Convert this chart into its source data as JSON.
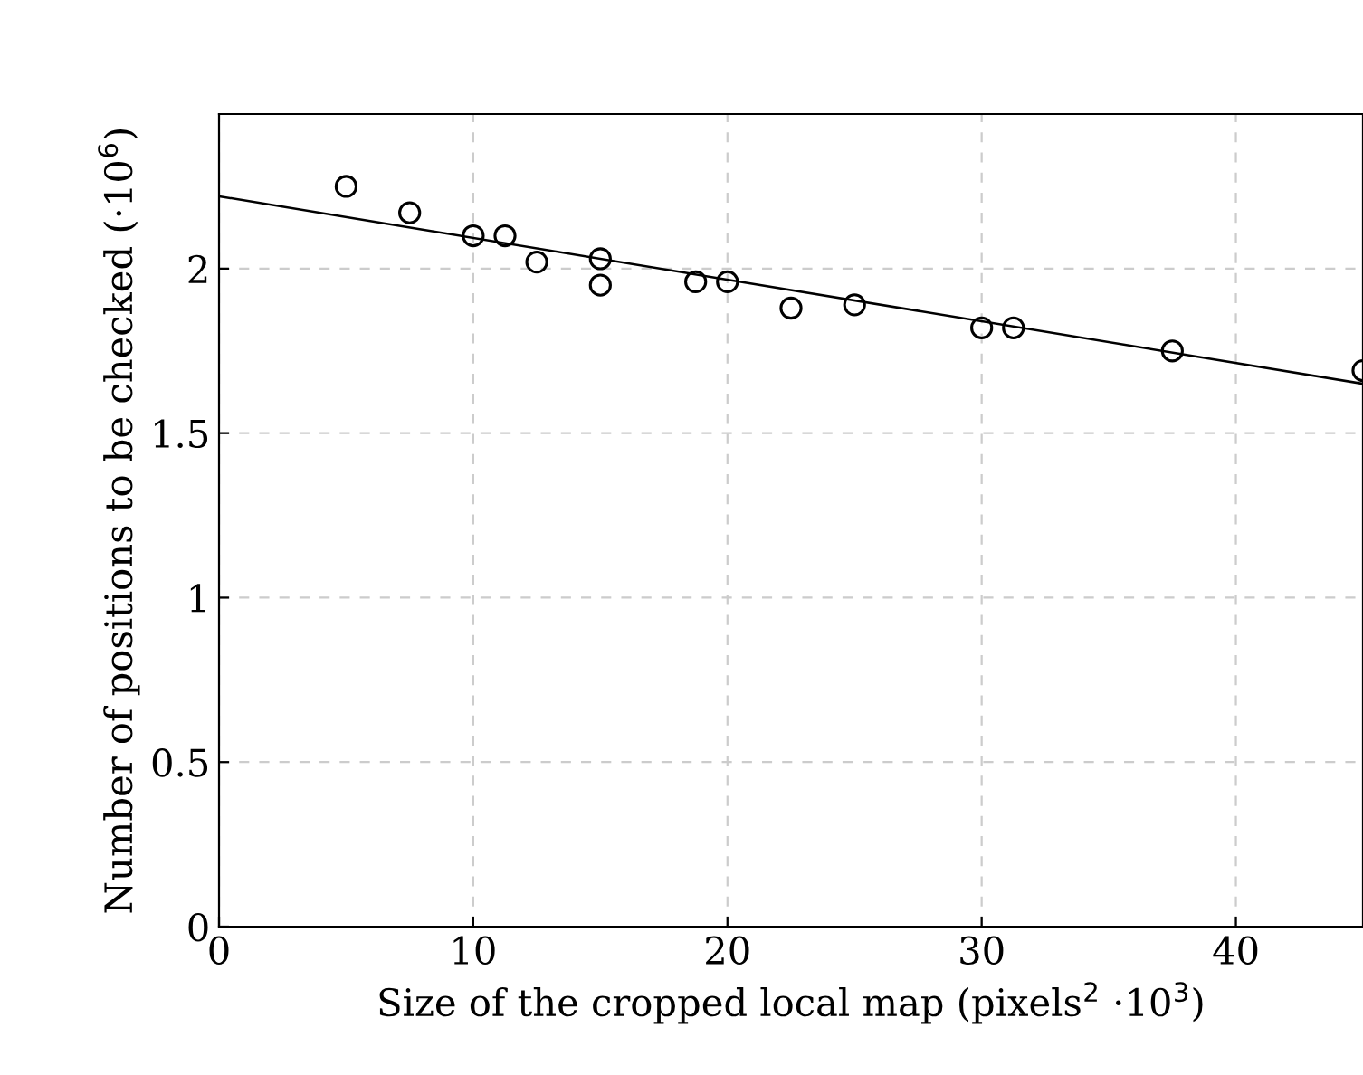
{
  "chart_data": {
    "type": "scatter",
    "xlabel": "Size of the cropped local map (pixels$^{2}$ ·10$^{3}$)",
    "ylabel": "Number of positions to be checked (·10$^{6}$)",
    "xlim": [
      0,
      45
    ],
    "ylim": [
      0,
      2.47
    ],
    "xticks": [
      0,
      10,
      20,
      30,
      40
    ],
    "yticks": [
      0,
      0.5,
      1,
      1.5,
      2
    ],
    "grid": true,
    "series": [
      {
        "marker": "circle",
        "color": "#000000",
        "x": [
          5,
          7.5,
          10,
          11.25,
          12.5,
          15,
          15,
          18.75,
          20,
          22.5,
          25,
          30,
          31.25,
          37.5,
          45
        ],
        "values": [
          2.25,
          2.17,
          2.1,
          2.1,
          2.02,
          2.03,
          1.95,
          1.96,
          1.96,
          1.88,
          1.89,
          1.82,
          1.82,
          1.75,
          1.69
        ]
      },
      {
        "type": "line",
        "marker": "none",
        "color": "#000000",
        "x": [
          0,
          45
        ],
        "values": [
          2.22,
          1.65
        ]
      }
    ]
  }
}
